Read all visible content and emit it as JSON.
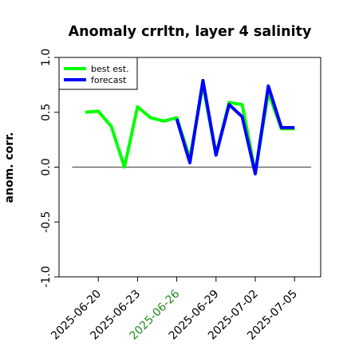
{
  "chart_data": {
    "type": "line",
    "title": "Anomaly crrltn, layer 4 salinity",
    "xlabel": "",
    "ylabel": "anom. corr.",
    "ylim": [
      -1.0,
      1.0
    ],
    "yticks": [
      "-1.0",
      "-0.5",
      "0.0",
      "0.5",
      "1.0"
    ],
    "xlim": [
      "2025-06-17",
      "2025-07-07"
    ],
    "xticks": [
      "2025-06-20",
      "2025-06-23",
      "2025-06-26",
      "2025-06-29",
      "2025-07-02",
      "2025-07-05"
    ],
    "highlight_tick": "2025-06-26",
    "highlight_color": "#228b22",
    "reference_line": 0.0,
    "legend_position": "top-left",
    "x": [
      "2025-06-19",
      "2025-06-20",
      "2025-06-21",
      "2025-06-22",
      "2025-06-23",
      "2025-06-24",
      "2025-06-25",
      "2025-06-26",
      "2025-06-27",
      "2025-06-28",
      "2025-06-29",
      "2025-06-30",
      "2025-07-01",
      "2025-07-02",
      "2025-07-03",
      "2025-07-04",
      "2025-07-05"
    ],
    "series": [
      {
        "name": "best est.",
        "color": "#00ff00",
        "values": [
          0.5,
          0.51,
          0.37,
          0.0,
          0.55,
          0.45,
          0.42,
          0.45,
          0.08,
          0.75,
          0.11,
          0.59,
          0.57,
          -0.05,
          0.68,
          0.35,
          0.35
        ]
      },
      {
        "name": "forecast",
        "color": "#0000ff",
        "values": [
          null,
          null,
          null,
          null,
          null,
          null,
          null,
          0.44,
          0.04,
          0.79,
          0.11,
          0.57,
          0.46,
          -0.06,
          0.74,
          0.36,
          0.36
        ]
      }
    ]
  }
}
